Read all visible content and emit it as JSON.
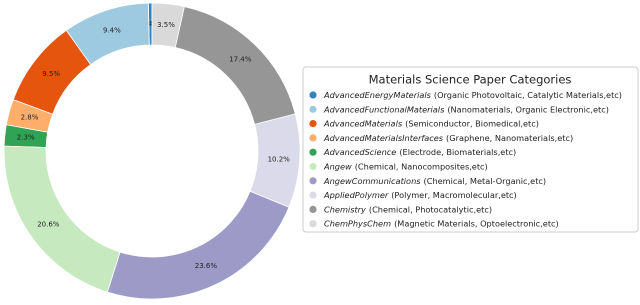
{
  "chart_data": {
    "type": "pie",
    "donut": true,
    "legend_title": "Materials Science Paper Categories",
    "categories": [
      "AdvancedEnergyMaterials",
      "AdvancedFunctionalMaterials",
      "AdvancedMaterials",
      "AdvancedMaterialsInterfaces",
      "AdvancedScience",
      "Angew",
      "AngewCommunications",
      "AppliedPolymer",
      "Chemistry",
      "ChemPhysChem"
    ],
    "category_details": [
      "(Organic Photovoltaic, Catalytic Materials,etc)",
      "(Nanomaterials, Organic Electronic,etc)",
      "(Semiconductor, Biomedical,etc)",
      "(Graphene, Nanomaterials,etc)",
      "(Electrode, Biomaterials,etc)",
      "(Chemical, Nanocomposites,etc)",
      "(Chemical, Metal-Organic,etc)",
      "(Polymer, Macromolecular,etc)",
      "(Chemical, Photocatalytic,etc)",
      "(Magnetic Materials, Optoelectronic,etc)"
    ],
    "values": [
      0.4,
      9.4,
      9.5,
      2.8,
      2.3,
      20.6,
      23.6,
      10.2,
      17.4,
      3.5
    ],
    "value_labels": [
      "0.4%",
      "9.4%",
      "9.5%",
      "2.8%",
      "2.3%",
      "20.6%",
      "23.6%",
      "10.2%",
      "17.4%",
      "3.5%"
    ],
    "colors": [
      "#3182bd",
      "#9ecae1",
      "#e6550d",
      "#fdae6b",
      "#31a354",
      "#c7e9c0",
      "#9e9ac8",
      "#dadaeb",
      "#969696",
      "#d9d9d9"
    ]
  }
}
